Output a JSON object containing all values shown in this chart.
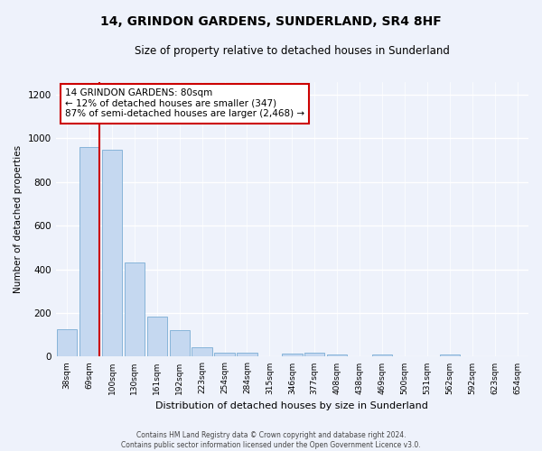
{
  "title": "14, GRINDON GARDENS, SUNDERLAND, SR4 8HF",
  "subtitle": "Size of property relative to detached houses in Sunderland",
  "xlabel": "Distribution of detached houses by size in Sunderland",
  "ylabel": "Number of detached properties",
  "categories": [
    "38sqm",
    "69sqm",
    "100sqm",
    "130sqm",
    "161sqm",
    "192sqm",
    "223sqm",
    "254sqm",
    "284sqm",
    "315sqm",
    "346sqm",
    "377sqm",
    "408sqm",
    "438sqm",
    "469sqm",
    "500sqm",
    "531sqm",
    "562sqm",
    "592sqm",
    "623sqm",
    "654sqm"
  ],
  "values": [
    125,
    960,
    950,
    430,
    185,
    120,
    45,
    20,
    20,
    0,
    15,
    20,
    10,
    0,
    10,
    0,
    0,
    10,
    0,
    0,
    0
  ],
  "bar_color": "#c5d8f0",
  "bar_edge_color": "#7aadd4",
  "ylim": [
    0,
    1260
  ],
  "yticks": [
    0,
    200,
    400,
    600,
    800,
    1000,
    1200
  ],
  "annotation_text": "14 GRINDON GARDENS: 80sqm\n← 12% of detached houses are smaller (347)\n87% of semi-detached houses are larger (2,468) →",
  "annotation_box_color": "#ffffff",
  "annotation_box_edgecolor": "#cc0000",
  "vline_color": "#cc0000",
  "footer_line1": "Contains HM Land Registry data © Crown copyright and database right 2024.",
  "footer_line2": "Contains public sector information licensed under the Open Government Licence v3.0.",
  "background_color": "#eef2fb",
  "grid_color": "#ffffff"
}
